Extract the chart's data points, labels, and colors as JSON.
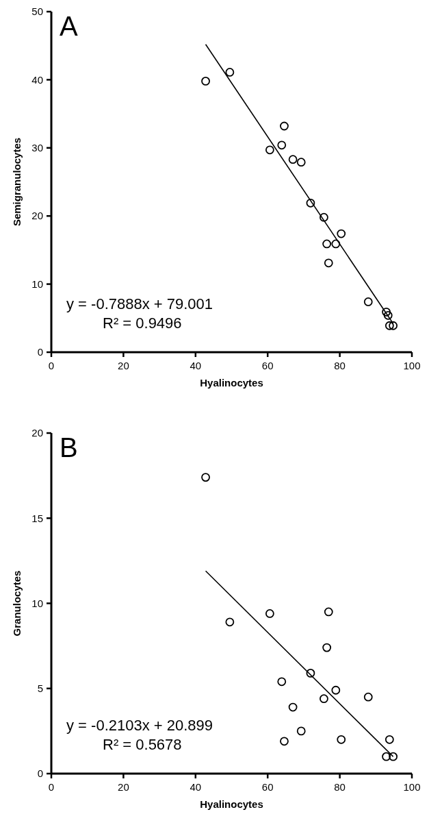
{
  "chart_data": [
    {
      "type": "scatter",
      "title": "A",
      "xlabel": "Hyalinocytes",
      "ylabel": "Semigranulocytes",
      "xlim": [
        0,
        100
      ],
      "xticks": [
        0,
        20,
        40,
        60,
        80,
        100
      ],
      "ylim": [
        0,
        50
      ],
      "yticks": [
        0,
        10,
        20,
        30,
        40,
        50
      ],
      "grid": false,
      "annotations": [
        "y = -0.7888x + 79.001",
        "R² = 0.9496"
      ],
      "series": [
        {
          "type": "scatter",
          "marker": "circle",
          "color": "#000000",
          "x": [
            42.8,
            49.5,
            60.6,
            63.9,
            64.6,
            67.0,
            69.3,
            71.9,
            75.6,
            76.4,
            76.9,
            78.9,
            80.4,
            87.9,
            92.9,
            93.4,
            93.8,
            94.8
          ],
          "values": [
            39.8,
            41.1,
            29.7,
            30.4,
            33.2,
            28.3,
            27.9,
            21.9,
            19.8,
            15.9,
            13.1,
            15.9,
            17.4,
            7.4,
            5.9,
            5.4,
            3.9,
            3.9
          ]
        },
        {
          "type": "line",
          "color": "#000000",
          "x": [
            42.8,
            94.8
          ],
          "values": [
            45.2,
            4.2
          ]
        }
      ]
    },
    {
      "type": "scatter",
      "title": "B",
      "xlabel": "Hyalinocytes",
      "ylabel": "Granulocytes",
      "xlim": [
        0,
        100
      ],
      "xticks": [
        0,
        20,
        40,
        60,
        80,
        100
      ],
      "ylim": [
        0,
        20
      ],
      "yticks": [
        0,
        5,
        10,
        15,
        20
      ],
      "grid": false,
      "annotations": [
        "y = -0.2103x + 20.899",
        "R² = 0.5678"
      ],
      "series": [
        {
          "type": "scatter",
          "marker": "circle",
          "color": "#000000",
          "x": [
            42.8,
            49.5,
            60.6,
            63.9,
            64.6,
            67.0,
            69.3,
            71.9,
            75.6,
            76.4,
            76.9,
            78.9,
            80.4,
            87.9,
            92.9,
            93.8,
            94.8
          ],
          "values": [
            17.4,
            8.9,
            9.4,
            5.4,
            1.9,
            3.9,
            2.5,
            5.9,
            4.4,
            7.4,
            9.5,
            4.9,
            2.0,
            4.5,
            1.0,
            2.0,
            1.0
          ]
        },
        {
          "type": "line",
          "color": "#000000",
          "x": [
            42.8,
            94.8
          ],
          "values": [
            11.9,
            1.0
          ]
        }
      ]
    }
  ]
}
